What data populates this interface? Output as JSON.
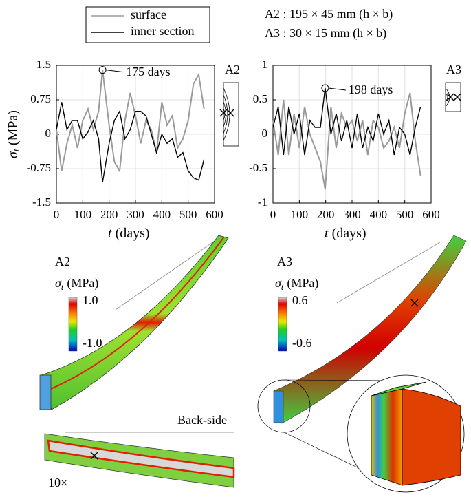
{
  "chart_data": [
    {
      "type": "line",
      "section_label": "A2",
      "xlabel": {
        "symbol": "t",
        "unit": "(days)"
      },
      "ylabel": {
        "symbol": "σ",
        "subscript": "t",
        "unit": "(MPa)"
      },
      "x": [
        0,
        20,
        40,
        60,
        80,
        100,
        120,
        140,
        160,
        175,
        200,
        220,
        240,
        260,
        280,
        300,
        320,
        340,
        360,
        380,
        400,
        420,
        440,
        460,
        480,
        500,
        520,
        540,
        560
      ],
      "series": [
        {
          "name": "surface",
          "color": "#9a9a9a",
          "values": [
            0.1,
            -0.8,
            -0.2,
            0.2,
            -0.3,
            0.3,
            0.55,
            0.1,
            0.5,
            1.4,
            0.2,
            -0.6,
            -0.8,
            0.3,
            0.9,
            0.4,
            -0.2,
            0.3,
            0.1,
            -0.4,
            0.7,
            0.2,
            0.4,
            -0.3,
            -0.1,
            0.3,
            1.1,
            1.3,
            0.55
          ]
        },
        {
          "name": "inner section",
          "color": "#000000",
          "values": [
            0.1,
            0.7,
            0.1,
            0.3,
            0.3,
            -0.1,
            0.05,
            0.3,
            -0.1,
            -1.05,
            -0.2,
            0.3,
            0.5,
            -0.1,
            0.1,
            0.5,
            0.5,
            0.4,
            0.0,
            -0.4,
            0.0,
            -0.2,
            -0.1,
            -0.5,
            -0.4,
            -0.8,
            -0.95,
            -1.0,
            -0.55
          ]
        }
      ],
      "annotations": [
        {
          "label": "175 days",
          "x": 175,
          "y": 1.4
        }
      ],
      "xlim": [
        0,
        600
      ],
      "xticks": [
        0,
        100,
        200,
        300,
        400,
        500,
        600
      ],
      "ylim": [
        -1.5,
        1.5
      ],
      "yticks": [
        -1.5,
        -0.75,
        0,
        0.75,
        1.5
      ],
      "grid": true
    },
    {
      "type": "line",
      "section_label": "A3",
      "xlabel": {
        "symbol": "t",
        "unit": "(days)"
      },
      "x": [
        0,
        20,
        40,
        60,
        80,
        100,
        120,
        140,
        160,
        180,
        198,
        220,
        240,
        260,
        280,
        300,
        320,
        340,
        360,
        380,
        400,
        420,
        440,
        460,
        480,
        500,
        520,
        540,
        560
      ],
      "series": [
        {
          "name": "surface",
          "color": "#9a9a9a",
          "values": [
            0.2,
            -0.3,
            0.5,
            -0.3,
            0.3,
            -0.2,
            0.4,
            0.0,
            -0.2,
            -0.4,
            -0.8,
            0.4,
            -0.2,
            0.3,
            0.1,
            0.2,
            -0.1,
            0.2,
            -0.3,
            0.2,
            0.1,
            -0.2,
            -0.1,
            0.1,
            -0.2,
            0.3,
            0.6,
            -0.1,
            -0.6
          ]
        },
        {
          "name": "inner section",
          "color": "#000000",
          "values": [
            0.1,
            0.4,
            -0.3,
            0.4,
            0.0,
            0.3,
            -0.3,
            0.2,
            0.1,
            0.1,
            0.67,
            0.0,
            0.3,
            -0.1,
            0.2,
            -0.2,
            0.3,
            -0.2,
            0.1,
            -0.1,
            0.3,
            0.0,
            0.2,
            -0.3,
            0.1,
            0.0,
            -0.3,
            0.1,
            0.4
          ]
        }
      ],
      "annotations": [
        {
          "label": "198 days",
          "x": 198,
          "y": 0.67
        }
      ],
      "xlim": [
        0,
        600
      ],
      "xticks": [
        0,
        100,
        200,
        300,
        400,
        500,
        600
      ],
      "ylim": [
        -1,
        1
      ],
      "yticks": [
        -1,
        -0.5,
        0,
        0.5,
        1
      ],
      "grid": true
    }
  ],
  "figure": {
    "dimensions": [
      "A2 : 195 × 45 mm (h × b)",
      "A3 : 30 × 15 mm (h × b)"
    ],
    "models": [
      {
        "label": "A2",
        "colorbar_title": {
          "symbol": "σ",
          "subscript": "t",
          "unit": "(MPa)"
        },
        "colorbar_max": "1.0",
        "colorbar_min": "-1.0",
        "backside_label": "Back-side",
        "zoom_label": "10×"
      },
      {
        "label": "A3",
        "colorbar_title": {
          "symbol": "σ",
          "subscript": "t",
          "unit": "(MPa)"
        },
        "colorbar_max": "0.6",
        "colorbar_min": "-0.6"
      }
    ]
  }
}
